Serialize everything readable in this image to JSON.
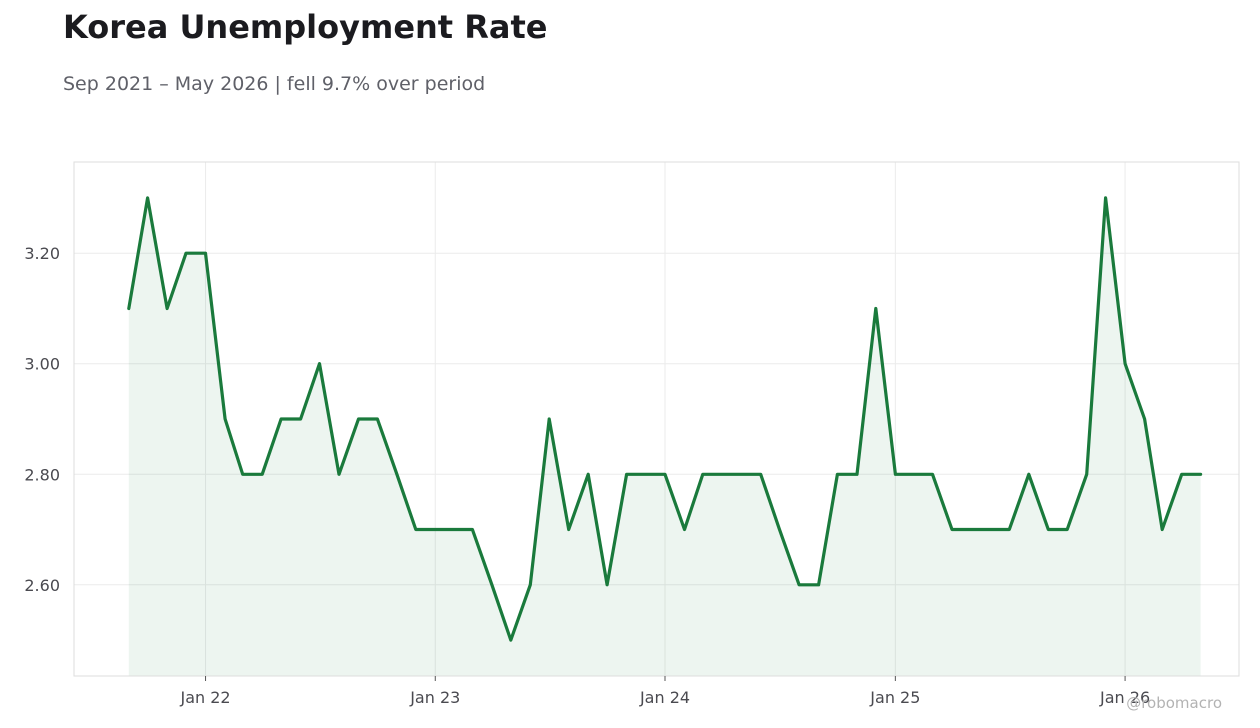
{
  "title": "Korea Unemployment Rate",
  "subtitle": "Sep 2021 – May 2026 | fell 9.7% over period",
  "watermark": "@robomacro",
  "colors": {
    "line": "#1a7a3c",
    "fill": "#1a7a3c",
    "grid": "#ebebeb",
    "frame": "#dddddd"
  },
  "chart_data": {
    "type": "line",
    "title": "Korea Unemployment Rate",
    "subtitle": "Sep 2021 – May 2026 | fell 9.7% over period",
    "xlabel": "",
    "ylabel": "",
    "grid": true,
    "area_fill": true,
    "x": [
      "2021-09",
      "2021-10",
      "2021-11",
      "2021-12",
      "2022-01",
      "2022-02",
      "2022-03",
      "2022-04",
      "2022-05",
      "2022-06",
      "2022-07",
      "2022-08",
      "2022-09",
      "2022-10",
      "2022-11",
      "2022-12",
      "2023-01",
      "2023-02",
      "2023-03",
      "2023-04",
      "2023-05",
      "2023-06",
      "2023-07",
      "2023-08",
      "2023-09",
      "2023-10",
      "2023-11",
      "2023-12",
      "2024-01",
      "2024-02",
      "2024-03",
      "2024-04",
      "2024-05",
      "2024-06",
      "2024-07",
      "2024-08",
      "2024-09",
      "2024-10",
      "2024-11",
      "2024-12",
      "2025-01",
      "2025-02",
      "2025-03",
      "2025-04",
      "2025-05",
      "2025-06",
      "2025-07",
      "2025-08",
      "2025-09",
      "2025-10",
      "2025-11",
      "2025-12",
      "2026-01",
      "2026-02",
      "2026-03",
      "2026-04",
      "2026-05"
    ],
    "series": [
      {
        "values": [
          3.1,
          3.3,
          3.1,
          3.2,
          3.2,
          2.9,
          2.8,
          2.8,
          2.9,
          2.9,
          3.0,
          2.8,
          2.9,
          2.9,
          2.8,
          2.7,
          2.7,
          2.7,
          2.7,
          2.6,
          2.5,
          2.6,
          2.9,
          2.7,
          2.8,
          2.6,
          2.8,
          2.8,
          2.8,
          2.7,
          2.8,
          2.8,
          2.8,
          2.8,
          2.7,
          2.6,
          2.6,
          2.8,
          2.8,
          3.1,
          2.8,
          2.8,
          2.8,
          2.7,
          2.7,
          2.7,
          2.7,
          2.8,
          2.7,
          2.7,
          2.8,
          3.3,
          3.0,
          2.9,
          2.7,
          2.8,
          2.8
        ]
      }
    ],
    "x_ticks": [
      "2022-01",
      "2023-01",
      "2024-01",
      "2025-01",
      "2026-01"
    ],
    "x_tick_labels": [
      "Jan 22",
      "Jan 23",
      "Jan 24",
      "Jan 25",
      "Jan 26"
    ],
    "y_ticks": [
      2.6,
      2.8,
      3.0,
      3.2
    ],
    "y_tick_labels": [
      "2.60",
      "2.80",
      "3.00",
      "3.20"
    ],
    "ylim": [
      2.435,
      3.365
    ],
    "xlim": [
      "2021-06-06",
      "2026-07-01"
    ]
  }
}
